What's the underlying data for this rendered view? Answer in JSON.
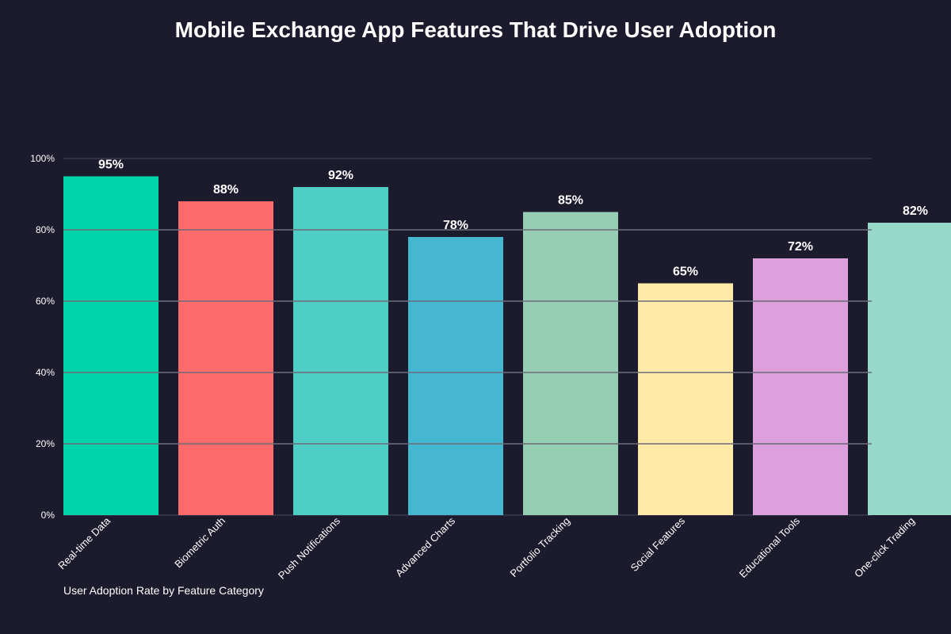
{
  "chart_data": {
    "type": "bar",
    "title": "Mobile Exchange App Features That Drive User Adoption",
    "caption": "User Adoption Rate by Feature Category",
    "categories": [
      "Real-time Data",
      "Biometric Auth",
      "Push Notifications",
      "Advanced Charts",
      "Portfolio Tracking",
      "Social Features",
      "Educational Tools",
      "One-click Trading"
    ],
    "values": [
      95,
      88,
      92,
      78,
      85,
      65,
      72,
      82
    ],
    "value_labels": [
      "95%",
      "88%",
      "92%",
      "78%",
      "85%",
      "65%",
      "72%",
      "82%"
    ],
    "colors": [
      "#00d4aa",
      "#ff6b6b",
      "#4ecdc4",
      "#45b7d1",
      "#96ceb4",
      "#ffeaa7",
      "#dda0dd",
      "#98d8c8"
    ],
    "ylim": [
      0,
      100
    ],
    "yticks": [
      0,
      20,
      40,
      60,
      80,
      100
    ],
    "ytick_labels": [
      "0%",
      "20%",
      "40%",
      "60%",
      "80%",
      "100%"
    ],
    "grid": true,
    "xlabel": "",
    "ylabel": ""
  }
}
